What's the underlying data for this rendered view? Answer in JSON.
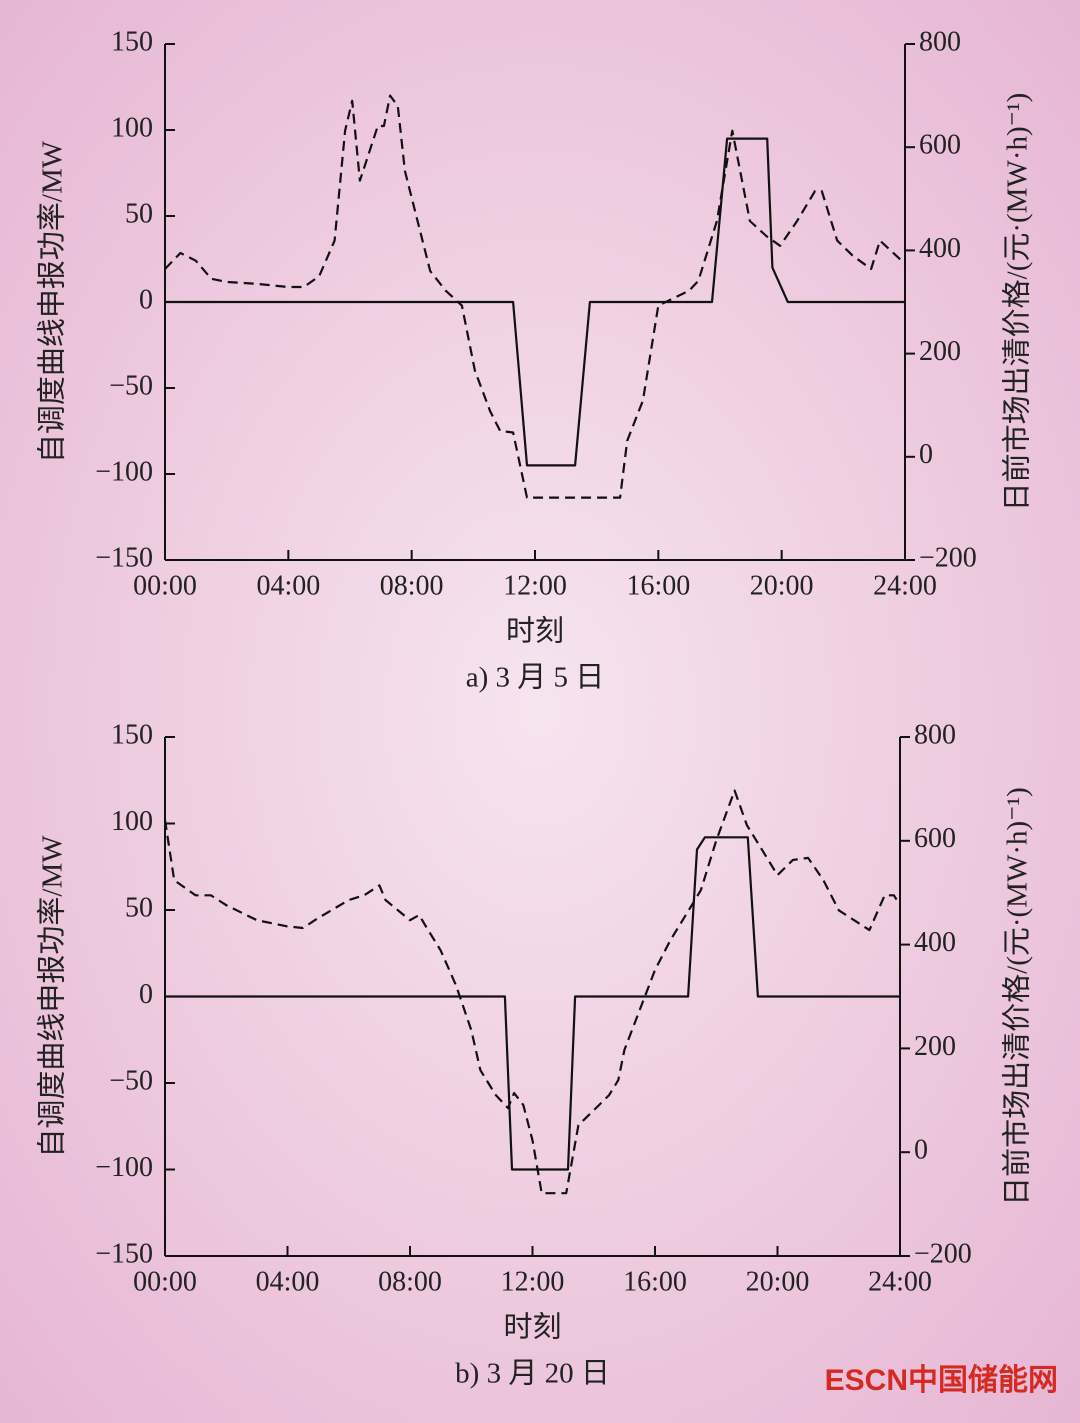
{
  "chart_data": [
    {
      "type": "line",
      "xlim": [
        0,
        24
      ],
      "xticks": [
        {
          "value": 0,
          "label": "00:00"
        },
        {
          "value": 4,
          "label": "04:00"
        },
        {
          "value": 8,
          "label": "08:00"
        },
        {
          "value": 12,
          "label": "12:00"
        },
        {
          "value": 16,
          "label": "16:00"
        },
        {
          "value": 20,
          "label": "20:00"
        },
        {
          "value": 24,
          "label": "24:00"
        }
      ],
      "ylim": [
        -150,
        150
      ],
      "yticks": [
        {
          "value": -150,
          "label": "−150"
        },
        {
          "value": -100,
          "label": "−100"
        },
        {
          "value": -50,
          "label": "−50"
        },
        0,
        50,
        100,
        150
      ],
      "y2lim": [
        -200,
        800
      ],
      "y2ticks": [
        {
          "value": -200,
          "label": "−200"
        },
        0,
        200,
        400,
        600,
        800
      ],
      "xlabel": "时刻",
      "ylabel": "自调度曲线申报功率/MW",
      "y2label": "日前市场出清价格/(元·(MW·h)⁻¹)",
      "caption": "a) 3 月 5 日",
      "series": [
        {
          "color": "#111111",
          "style": "solid",
          "x": [
            0,
            11.29,
            11.74,
            13.3,
            13.78,
            17.74,
            18.23,
            19.53,
            19.7,
            20.2,
            24
          ],
          "values": [
            0,
            0,
            -95,
            -95,
            0,
            0,
            95,
            95,
            20,
            0,
            0
          ]
        },
        {
          "color": "#111111",
          "style": "dashed",
          "axis": "y2",
          "x": [
            0,
            0.5,
            1.0,
            1.5,
            2.0,
            3.0,
            4.0,
            4.5,
            5.0,
            5.5,
            5.84,
            6.07,
            6.32,
            6.9,
            7.1,
            7.3,
            7.55,
            7.78,
            8.6,
            9.1,
            9.63,
            10.05,
            10.54,
            10.87,
            11.29,
            11.74,
            14.76,
            14.99,
            15.5,
            16.0,
            17.0,
            17.3,
            17.9,
            18.4,
            18.97,
            19.5,
            19.95,
            20.5,
            21.08,
            21.3,
            21.8,
            22.3,
            22.9,
            23.19,
            24
          ],
          "values": [
            364,
            395,
            380,
            345,
            339,
            335,
            329,
            329,
            350,
            419,
            632,
            690,
            535,
            641,
            641,
            700,
            680,
            554,
            360,
            322,
            293,
            167,
            89,
            50,
            47,
            -79,
            -79,
            31,
            109,
            293,
            322,
            341,
            457,
            632,
            457,
            428,
            409,
            457,
            515,
            515,
            419,
            390,
            364,
            419,
            374
          ]
        }
      ]
    },
    {
      "type": "line",
      "xlim": [
        0,
        24
      ],
      "xticks": [
        {
          "value": 0,
          "label": "00:00"
        },
        {
          "value": 4,
          "label": "04:00"
        },
        {
          "value": 8,
          "label": "08:00"
        },
        {
          "value": 12,
          "label": "12:00"
        },
        {
          "value": 16,
          "label": "16:00"
        },
        {
          "value": 20,
          "label": "20:00"
        },
        {
          "value": 24,
          "label": "24:00"
        }
      ],
      "ylim": [
        -150,
        150
      ],
      "yticks": [
        {
          "value": -150,
          "label": "−150"
        },
        {
          "value": -100,
          "label": "−100"
        },
        {
          "value": -50,
          "label": "−50"
        },
        0,
        50,
        100,
        150
      ],
      "y2lim": [
        -200,
        800
      ],
      "y2ticks": [
        {
          "value": -200,
          "label": "−200"
        },
        0,
        200,
        400,
        600,
        800
      ],
      "xlabel": "时刻",
      "ylabel": "自调度曲线申报功率/MW",
      "y2label": "日前市场出清价格/(元·(MW·h)⁻¹)",
      "caption": "b) 3 月 20 日",
      "series": [
        {
          "color": "#111111",
          "style": "solid",
          "x": [
            0,
            11.1,
            11.33,
            13.16,
            13.39,
            17.08,
            17.37,
            17.63,
            19.03,
            19.36,
            24
          ],
          "values": [
            0,
            0,
            -100,
            -100,
            0,
            0,
            85,
            92,
            92,
            0,
            0
          ]
        },
        {
          "color": "#111111",
          "style": "dashed",
          "axis": "y2",
          "x": [
            0,
            0.3,
            1.0,
            1.5,
            2.0,
            3.0,
            4.0,
            4.5,
            5.0,
            6.0,
            6.5,
            7.0,
            7.2,
            8.0,
            8.3,
            8.5,
            9.0,
            9.5,
            10.0,
            10.3,
            10.8,
            11.2,
            11.4,
            11.7,
            12.0,
            12.3,
            12.5,
            13.1,
            13.5,
            14.0,
            14.5,
            14.8,
            15.0,
            16.0,
            16.5,
            17.2,
            17.5,
            18.0,
            18.6,
            19.0,
            19.5,
            20.0,
            20.5,
            21.0,
            21.5,
            22.0,
            22.5,
            23.0,
            23.5,
            23.8,
            24.0
          ],
          "values": [
            640,
            524,
            495,
            495,
            476,
            447,
            435,
            432,
            451,
            486,
            495,
            514,
            486,
            447,
            457,
            437,
            389,
            322,
            235,
            158,
            110,
            85,
            114,
            91,
            23,
            -79,
            -79,
            -79,
            52,
            81,
            110,
            139,
            197,
            351,
            408,
            476,
            505,
            601,
            697,
            630,
            582,
            534,
            563,
            567,
            524,
            466,
            447,
            428,
            495,
            495,
            476
          ]
        }
      ]
    }
  ],
  "watermark": "ESCN中国储能网"
}
